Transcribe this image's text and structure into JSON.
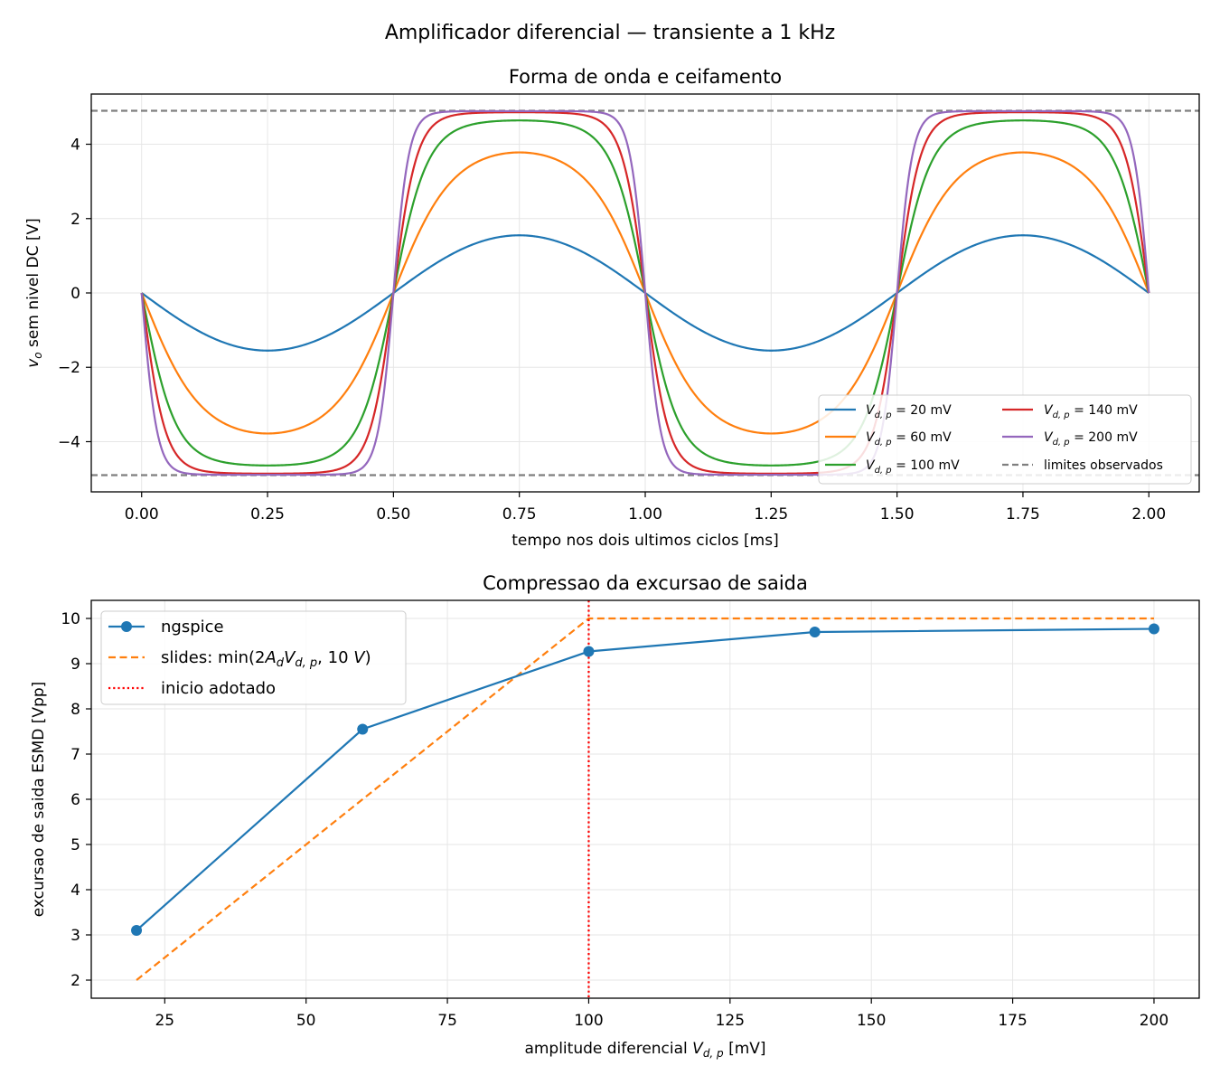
{
  "suptitle": "Amplificador diferencial — transiente a 1 kHz",
  "colors": {
    "blue": "#1f77b4",
    "orange": "#ff7f0e",
    "green": "#2ca02c",
    "red": "#d62728",
    "purple": "#9467bd",
    "gray": "#7f7f7f",
    "inicio": "#ff0000"
  },
  "chart_data": [
    {
      "type": "line",
      "title": "Forma de onda e ceifamento",
      "xlabel": "tempo nos dois ultimos ciclos [ms]",
      "ylabel": "v_o sem nivel DC [V]",
      "xlim": [
        -0.1,
        2.1
      ],
      "ylim": [
        -5.35,
        5.35
      ],
      "xticks": [
        "0.00",
        "0.25",
        "0.50",
        "0.75",
        "1.00",
        "1.25",
        "1.50",
        "1.75",
        "2.00"
      ],
      "yticks": [
        "−4",
        "−2",
        "0",
        "2",
        "4"
      ],
      "grid": true,
      "legend_placement": "lower right",
      "legend_columns": 2,
      "waveform": "v = -L*tanh(k*sin(2*pi*t))/tanh(k), t in ms, period 1 ms",
      "series": [
        {
          "name": "V_{d,p} = 20 mV",
          "amplitude_pk": 1.55,
          "shape_k": 0.25,
          "color": "#1f77b4"
        },
        {
          "name": "V_{d,p} = 60 mV",
          "amplitude_pk": 3.78,
          "shape_k": 1.2,
          "color": "#ff7f0e"
        },
        {
          "name": "V_{d,p} = 100 mV",
          "amplitude_pk": 4.64,
          "shape_k": 2.3,
          "color": "#2ca02c"
        },
        {
          "name": "V_{d,p} = 140 mV",
          "amplitude_pk": 4.86,
          "shape_k": 3.4,
          "color": "#d62728"
        },
        {
          "name": "V_{d,p} = 200 mV",
          "amplitude_pk": 4.89,
          "shape_k": 5.2,
          "color": "#9467bd"
        }
      ],
      "limits": {
        "name": "limites observados",
        "values": [
          4.9,
          -4.9
        ],
        "style": "dashed",
        "color": "#7f7f7f"
      }
    },
    {
      "type": "line",
      "title": "Compressao da excursao de saida",
      "xlabel": "amplitude diferencial V_{d,p} [mV]",
      "ylabel": "excursao de saida ESMD [Vpp]",
      "xlim": [
        12,
        208
      ],
      "ylim": [
        1.6,
        10.4
      ],
      "xticks": [
        "25",
        "50",
        "75",
        "100",
        "125",
        "150",
        "175",
        "200"
      ],
      "yticks": [
        "2",
        "3",
        "4",
        "5",
        "6",
        "7",
        "8",
        "9",
        "10"
      ],
      "grid": true,
      "legend_placement": "upper left",
      "series": [
        {
          "name": "ngspice",
          "x": [
            20,
            60,
            100,
            140,
            200
          ],
          "y": [
            3.1,
            7.55,
            9.27,
            9.7,
            9.77
          ],
          "color": "#1f77b4",
          "marker": "circle"
        },
        {
          "name": "slides: min(2A_dV_{d,p}, 10 V)",
          "x": [
            20,
            100,
            200
          ],
          "y": [
            2.0,
            10.0,
            10.0
          ],
          "color": "#ff7f0e",
          "style": "dashed"
        }
      ],
      "vline": {
        "name": "inicio adotado",
        "x": 100,
        "color": "#ff0000",
        "style": "dotted"
      }
    }
  ]
}
